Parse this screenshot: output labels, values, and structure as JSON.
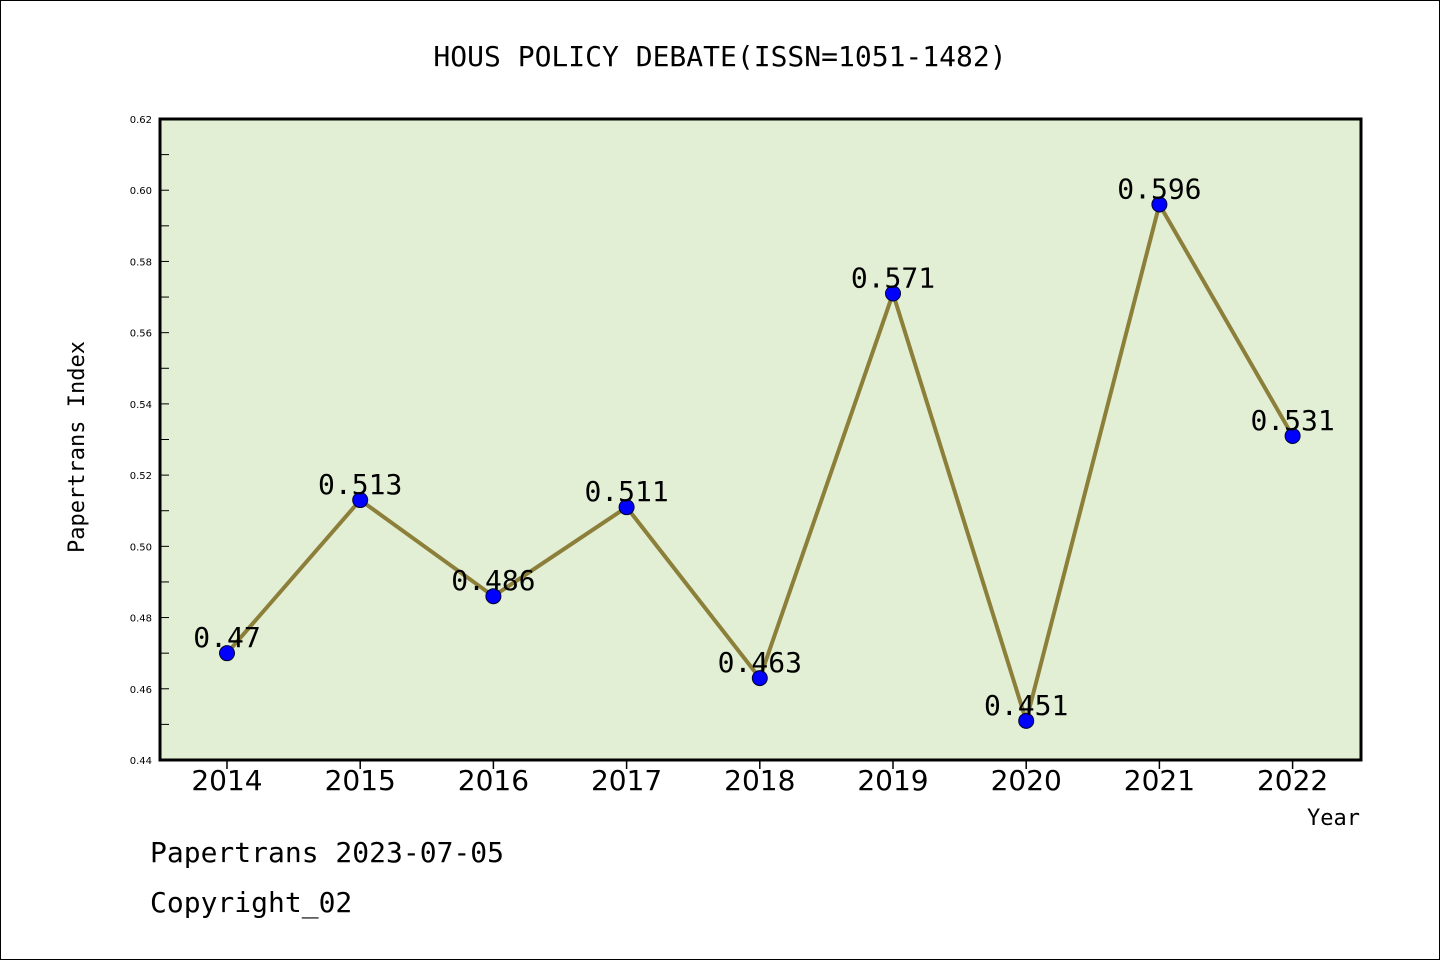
{
  "chart_data": {
    "type": "line",
    "title": "HOUS POLICY DEBATE(ISSN=1051-1482)",
    "xlabel": "Year",
    "ylabel": "Papertrans Index",
    "categories": [
      "2014",
      "2015",
      "2016",
      "2017",
      "2018",
      "2019",
      "2020",
      "2021",
      "2022"
    ],
    "values": [
      0.47,
      0.513,
      0.486,
      0.511,
      0.463,
      0.571,
      0.451,
      0.596,
      0.531
    ],
    "data_labels": [
      "0.47",
      "0.513",
      "0.486",
      "0.511",
      "0.463",
      "0.571",
      "0.451",
      "0.596",
      "0.531"
    ],
    "yticks": [
      "0.44",
      "0.46",
      "0.48",
      "0.50",
      "0.52",
      "0.54",
      "0.56",
      "0.58",
      "0.60",
      "0.62"
    ],
    "ylim": [
      0.44,
      0.62
    ],
    "grid": false,
    "colors": {
      "plot_background": "#e2efd5",
      "line": "#8c7f3a",
      "marker": "#0000ff"
    }
  },
  "footer": {
    "line1": "Papertrans 2023-07-05",
    "line2": "Copyright_02"
  }
}
